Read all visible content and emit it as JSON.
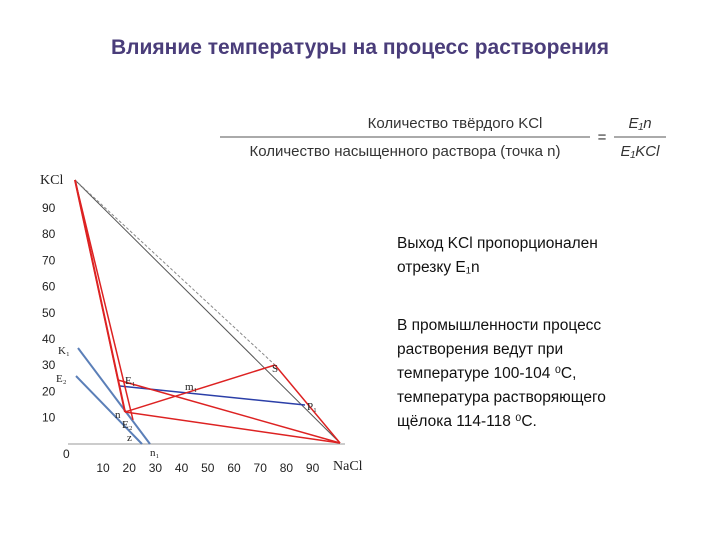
{
  "title": "Влияние температуры на процесс растворения",
  "formula": {
    "left_top": "Количество твёрдого KCl",
    "left_bottom": "Количество насыщенного раствора (точка n)",
    "equals": "=",
    "right_top": "E₁n",
    "right_bottom": "E₁KCl"
  },
  "diagram": {
    "apex_label": "KCl",
    "corner_label": "NaCl",
    "y_ticks": [
      "90",
      "80",
      "70",
      "60",
      "50",
      "40",
      "30",
      "20",
      "10"
    ],
    "origin_label": "0",
    "x_ticks": [
      "10",
      "20",
      "30",
      "40",
      "50",
      "60",
      "70",
      "80",
      "90"
    ],
    "points": [
      "K₁",
      "E₂",
      "E₁",
      "m₁",
      "S",
      "P₁",
      "n",
      "E₂",
      "z",
      "n₁"
    ]
  },
  "text": {
    "paragraph_1": [
      "Выход KCl пропорционален",
      "отрезку E₁n"
    ],
    "paragraph_2": [
      "В промышленности процесс",
      "растворения ведут при",
      "температуре 100-104 ⁰С,",
      "температура растворяющего",
      "щёлока 114-118 ⁰С."
    ]
  }
}
